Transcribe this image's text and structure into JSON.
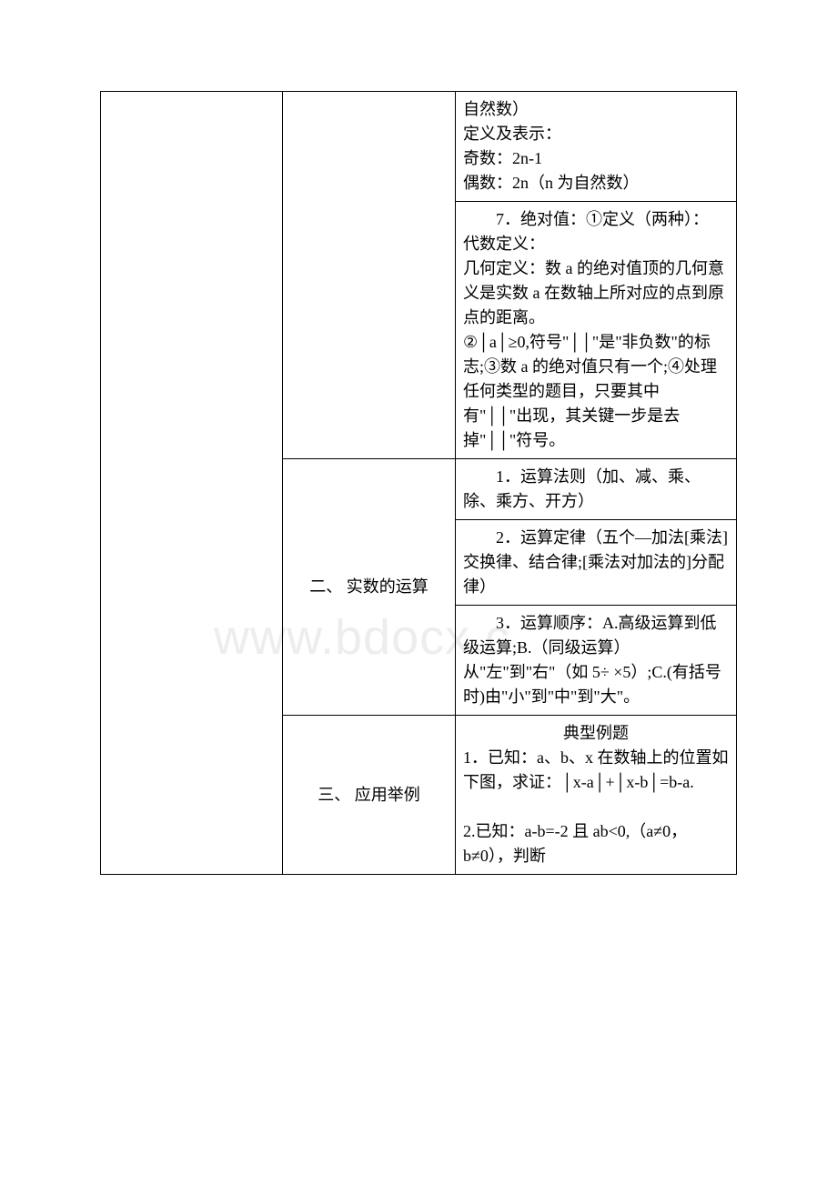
{
  "watermark": "www.bdocx.c",
  "table": {
    "rows": [
      {
        "col2": "",
        "col3": "自然数）\n定义及表示：\n奇数：2n-1\n偶数：2n（n 为自然数）"
      },
      {
        "col2": "",
        "col3_indent": "7．绝对值：①定义（两种）：",
        "col3_rest": "代数定义：\n几何定义：数 a 的绝对值顶的几何意义是实数 a 在数轴上所对应的点到原点的距离。\n②│a│≥0,符号\"││\"是\"非负数\"的标志;③数 a 的绝对值只有一个;④处理任何类型的题目，只要其中有\"││\"出现，其关键一步是去掉\"││\"符号。"
      },
      {
        "col2": "二、 实数的运算",
        "col3_indent": "1．运算法则（加、减、乘、除、乘方、开方）"
      },
      {
        "col2": "",
        "col3_indent": "2．运算定律（五个—加法[乘法]交换律、结合律;[乘法对加法的]分配律）"
      },
      {
        "col2": "",
        "col3_indent": "3．运算顺序：A.高级运算到低级运算;B.（同级运算）从\"左\"到\"右\"（如 5÷ ×5）;C.(有括号时)由\"小\"到\"中\"到\"大\"。"
      },
      {
        "col2": "三、 应用举例",
        "col3_center": "典型例题",
        "col3_body": "1．已知：a、b、x 在数轴上的位置如下图，求证：│x-a│+│x-b│=b-a.\n\n2.已知：a-b=-2 且 ab<0,（a≠0，b≠0），判断"
      }
    ]
  }
}
